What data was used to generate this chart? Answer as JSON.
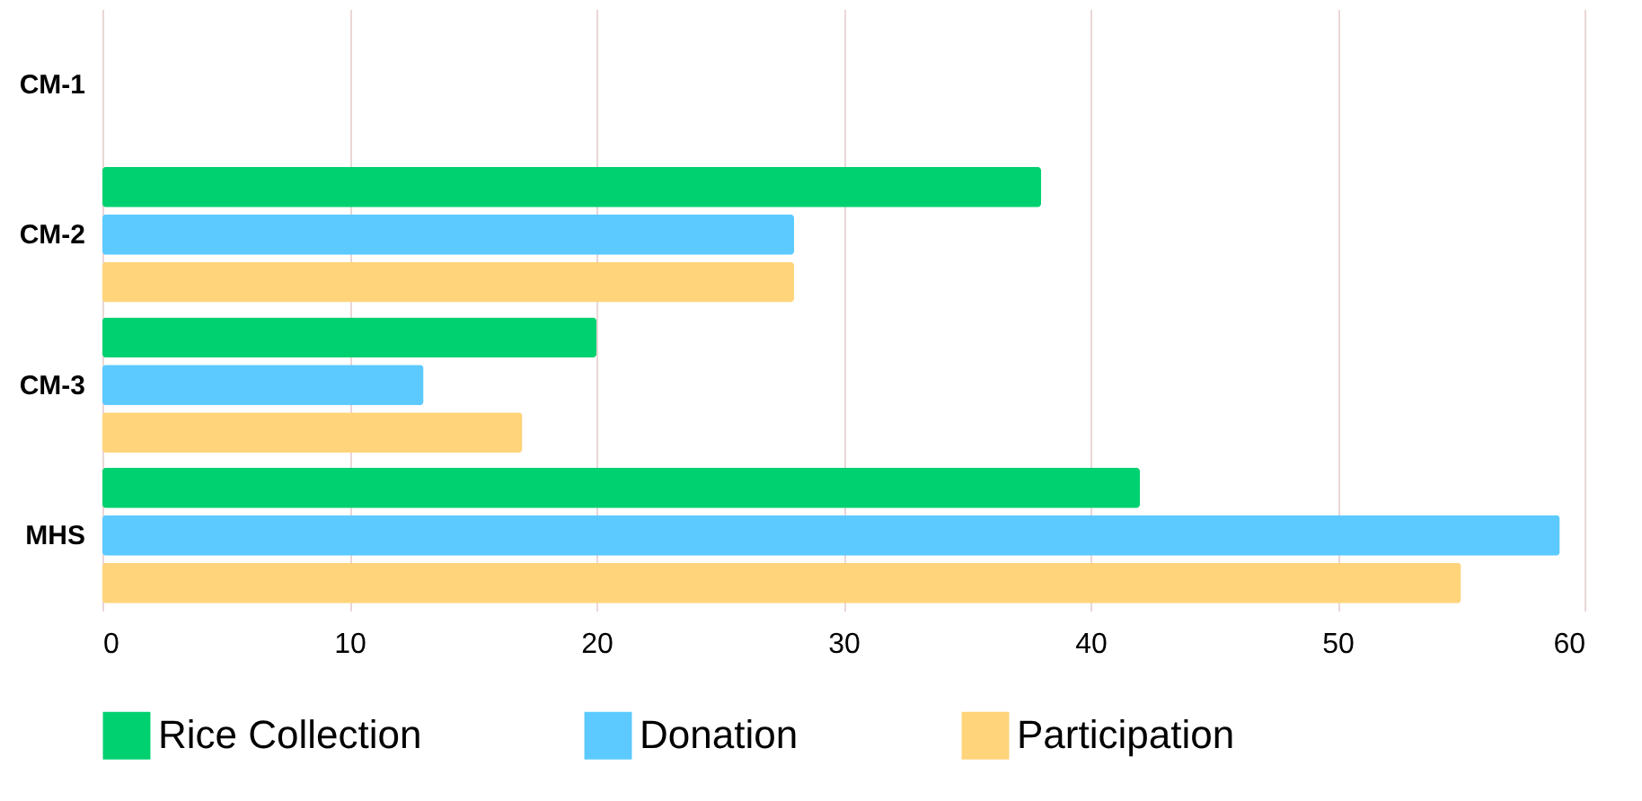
{
  "chart_data": {
    "type": "bar",
    "orientation": "horizontal",
    "categories": [
      "CM-1",
      "CM-2",
      "CM-3",
      "MHS"
    ],
    "series": [
      {
        "name": "Rice Collection",
        "color": "#00d170",
        "values": [
          0,
          38,
          20,
          42
        ]
      },
      {
        "name": "Donation",
        "color": "#5ccaff",
        "values": [
          0,
          28,
          13,
          59
        ]
      },
      {
        "name": "Participation",
        "color": "#ffd47a",
        "values": [
          0,
          28,
          17,
          55
        ]
      }
    ],
    "xlim": [
      0,
      60
    ],
    "xticks": [
      0,
      10,
      20,
      30,
      40,
      50,
      60
    ],
    "grid": "x",
    "legend": "bottom"
  }
}
